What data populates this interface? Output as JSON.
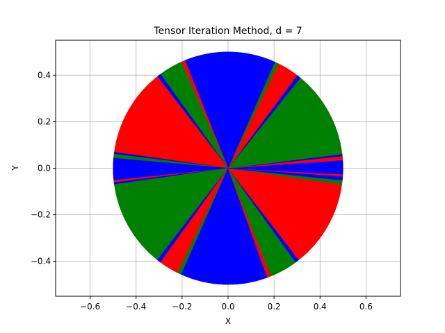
{
  "chart_data": {
    "type": "pie",
    "title": "Tensor Iteration Method, d = 7",
    "xlabel": "X",
    "ylabel": "Y",
    "xlim": [
      -0.75,
      0.75
    ],
    "ylim": [
      -0.55,
      0.55
    ],
    "grid": true,
    "radius": 0.5,
    "center": [
      0,
      0
    ],
    "xticks": [
      -0.6,
      -0.4,
      -0.2,
      0.0,
      0.2,
      0.4,
      0.6
    ],
    "yticks": [
      -0.4,
      -0.2,
      0.0,
      0.2,
      0.4
    ],
    "xtick_labels": [
      "−0.6",
      "−0.4",
      "−0.2",
      "0.0",
      "0.2",
      "0.4",
      "0.6"
    ],
    "ytick_labels": [
      "−0.4",
      "−0.2",
      "0.0",
      "0.2",
      "0.4"
    ],
    "colors": {
      "blue": "#0000ff",
      "green": "#008000",
      "red": "#ff0000"
    },
    "slices_ccw_from_east": [
      {
        "color": "blue",
        "start_deg": 0,
        "end_deg": 4
      },
      {
        "color": "red",
        "start_deg": 4,
        "end_deg": 6
      },
      {
        "color": "blue",
        "start_deg": 6,
        "end_deg": 7
      },
      {
        "color": "green",
        "start_deg": 7,
        "end_deg": 51
      },
      {
        "color": "blue",
        "start_deg": 51,
        "end_deg": 53
      },
      {
        "color": "red",
        "start_deg": 53,
        "end_deg": 64
      },
      {
        "color": "green",
        "start_deg": 64,
        "end_deg": 66
      },
      {
        "color": "blue",
        "start_deg": 66,
        "end_deg": 112
      },
      {
        "color": "red",
        "start_deg": 112,
        "end_deg": 114
      },
      {
        "color": "green",
        "start_deg": 114,
        "end_deg": 126
      },
      {
        "color": "blue",
        "start_deg": 126,
        "end_deg": 128
      },
      {
        "color": "red",
        "start_deg": 128,
        "end_deg": 172
      },
      {
        "color": "blue",
        "start_deg": 172,
        "end_deg": 173
      },
      {
        "color": "green",
        "start_deg": 173,
        "end_deg": 175
      },
      {
        "color": "blue",
        "start_deg": 175,
        "end_deg": 186
      },
      {
        "color": "red",
        "start_deg": 186,
        "end_deg": 187
      },
      {
        "color": "blue",
        "start_deg": 187,
        "end_deg": 188
      },
      {
        "color": "green",
        "start_deg": 188,
        "end_deg": 232
      },
      {
        "color": "blue",
        "start_deg": 232,
        "end_deg": 234
      },
      {
        "color": "red",
        "start_deg": 234,
        "end_deg": 244
      },
      {
        "color": "green",
        "start_deg": 244,
        "end_deg": 246
      },
      {
        "color": "blue",
        "start_deg": 246,
        "end_deg": 290
      },
      {
        "color": "red",
        "start_deg": 290,
        "end_deg": 292
      },
      {
        "color": "green",
        "start_deg": 292,
        "end_deg": 306
      },
      {
        "color": "blue",
        "start_deg": 306,
        "end_deg": 308
      },
      {
        "color": "red",
        "start_deg": 308,
        "end_deg": 352
      },
      {
        "color": "green",
        "start_deg": 352,
        "end_deg": 354
      },
      {
        "color": "blue",
        "start_deg": 354,
        "end_deg": 356
      },
      {
        "color": "red",
        "start_deg": 356,
        "end_deg": 357
      },
      {
        "color": "blue",
        "start_deg": 357,
        "end_deg": 360
      }
    ]
  }
}
